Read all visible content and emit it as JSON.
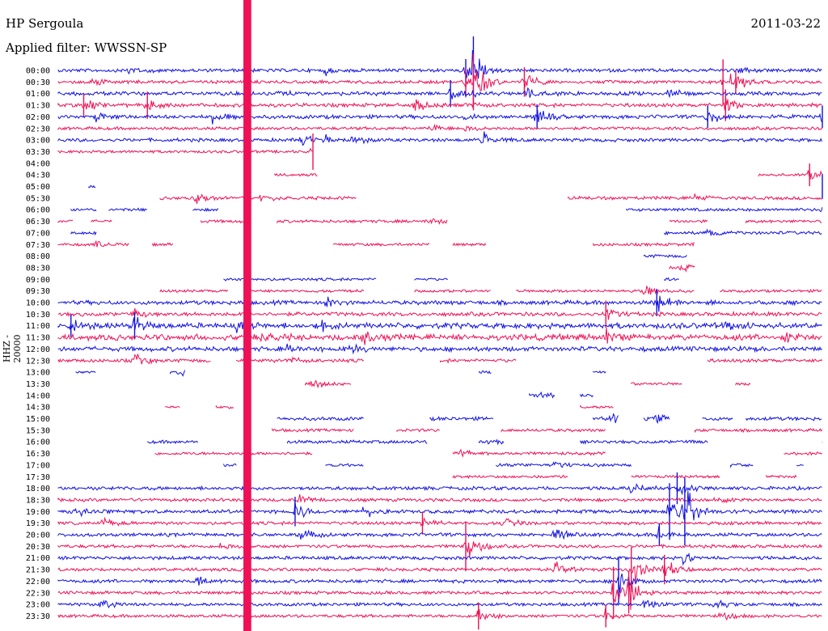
{
  "header": {
    "station": "HP Sergoula",
    "filter": "Applied filter: WWSSN-SP",
    "date": "2011-03-22"
  },
  "chart_data": {
    "type": "line",
    "title": "HP Sergoula",
    "subtitle": "Applied filter: WWSSN-SP",
    "date": "2011-03-22",
    "ylabel": "HHZ - 20000",
    "xlabel": "",
    "ylabels": [
      "00:00",
      "00:30",
      "01:00",
      "01:30",
      "02:00",
      "02:30",
      "03:00",
      "03:30",
      "04:00",
      "04:30",
      "05:00",
      "05:30",
      "06:00",
      "06:30",
      "07:00",
      "07:30",
      "08:00",
      "08:30",
      "09:00",
      "09:30",
      "10:00",
      "10:30",
      "11:00",
      "11:30",
      "12:00",
      "12:30",
      "13:00",
      "13:30",
      "14:00",
      "14:30",
      "15:00",
      "15:30",
      "16:00",
      "16:30",
      "17:00",
      "17:30",
      "18:00",
      "18:30",
      "19:00",
      "19:30",
      "20:00",
      "20:30",
      "21:00",
      "21:30",
      "22:00",
      "22:30",
      "23:00",
      "23:30"
    ],
    "series_colors": [
      "#1010e0",
      "#ee1155"
    ],
    "grid": false,
    "xlim": [
      0,
      30
    ],
    "x_units": "minutes",
    "traces": [
      {
        "label": "00:00",
        "segments": [
          [
            0,
            30
          ]
        ],
        "noise": 0.12,
        "events": [
          [
            2.8,
            0.6
          ],
          [
            10.5,
            0.5
          ],
          [
            16,
            1.0
          ],
          [
            16.3,
            3.0
          ],
          [
            26.5,
            0.4
          ]
        ]
      },
      {
        "label": "00:30",
        "segments": [
          [
            0,
            30
          ]
        ],
        "noise": 0.1,
        "events": [
          [
            1.3,
            0.6
          ],
          [
            16.0,
            1.2
          ],
          [
            16.3,
            2.5
          ],
          [
            18.3,
            1.3
          ],
          [
            26.1,
            2.0
          ],
          [
            26.6,
            1.0
          ]
        ]
      },
      {
        "label": "01:00",
        "segments": [
          [
            0,
            30
          ]
        ],
        "noise": 0.15,
        "events": [
          [
            8.5,
            0.4
          ],
          [
            15.4,
            1.2
          ],
          [
            16,
            0.6
          ],
          [
            18.4,
            0.8
          ],
          [
            24,
            0.6
          ]
        ]
      },
      {
        "label": "01:30",
        "segments": [
          [
            0,
            30
          ]
        ],
        "noise": 0.14,
        "events": [
          [
            1,
            1.0
          ],
          [
            3.5,
            1.2
          ],
          [
            14,
            0.8
          ],
          [
            16,
            0.5
          ],
          [
            26.2,
            1.4
          ]
        ]
      },
      {
        "label": "02:00",
        "segments": [
          [
            0,
            30
          ]
        ],
        "noise": 0.15,
        "events": [
          [
            1.5,
            0.7
          ],
          [
            6,
            0.8
          ],
          [
            16,
            0.4
          ],
          [
            18.8,
            1.1
          ],
          [
            25.5,
            1.0
          ],
          [
            30,
            1.0
          ]
        ]
      },
      {
        "label": "02:30",
        "segments": [
          [
            0,
            30
          ]
        ],
        "noise": 0.08,
        "events": [
          [
            14.6,
            0.5
          ],
          [
            16,
            0.4
          ]
        ]
      },
      {
        "label": "03:00",
        "segments": [
          [
            0,
            30
          ]
        ],
        "noise": 0.12,
        "events": [
          [
            9.5,
            0.9
          ],
          [
            10.5,
            0.7
          ],
          [
            11.6,
            0.6
          ],
          [
            16.7,
            0.9
          ]
        ]
      },
      {
        "label": "03:30",
        "segments": [
          [
            0,
            10
          ]
        ],
        "noise": 0.06,
        "events": [
          [
            10,
            1.6
          ]
        ]
      },
      {
        "label": "04:00",
        "segments": [],
        "noise": 0,
        "events": []
      },
      {
        "label": "04:30",
        "segments": [
          [
            27.5,
            30
          ],
          [
            8.5,
            10.2
          ]
        ],
        "noise": 0.05,
        "events": [
          [
            29.5,
            1.0
          ]
        ]
      },
      {
        "label": "05:00",
        "segments": [
          [
            1.2,
            1.5
          ]
        ],
        "noise": 0.05,
        "events": [
          [
            30,
            1.1
          ]
        ]
      },
      {
        "label": "05:30",
        "segments": [
          [
            4,
            11.7
          ],
          [
            20,
            30
          ]
        ],
        "noise": 0.1,
        "events": [
          [
            5.4,
            0.8
          ],
          [
            8,
            0.6
          ],
          [
            25,
            0.5
          ]
        ]
      },
      {
        "label": "06:00",
        "segments": [
          [
            0.5,
            1.5
          ],
          [
            2,
            3.5
          ],
          [
            5.3,
            6.3
          ],
          [
            22.3,
            30
          ]
        ],
        "noise": 0.08,
        "events": [
          [
            30,
            0.7
          ]
        ]
      },
      {
        "label": "06:30",
        "segments": [
          [
            0,
            0.6
          ],
          [
            1.3,
            2.1
          ],
          [
            5.6,
            7.5
          ],
          [
            8.6,
            15.3
          ],
          [
            24,
            25.5
          ],
          [
            27,
            30
          ]
        ],
        "noise": 0.08,
        "events": [
          [
            14.5,
            0.5
          ]
        ]
      },
      {
        "label": "07:00",
        "segments": [
          [
            0.5,
            1.5
          ],
          [
            23.8,
            30
          ]
        ],
        "noise": 0.1,
        "events": [
          [
            25.5,
            0.7
          ]
        ]
      },
      {
        "label": "07:30",
        "segments": [
          [
            0,
            2.8
          ],
          [
            3.7,
            4.5
          ],
          [
            10.8,
            14.6
          ],
          [
            15.5,
            16.8
          ],
          [
            21,
            25
          ]
        ],
        "noise": 0.07,
        "events": [
          [
            1.5,
            0.4
          ],
          [
            25,
            0.4
          ]
        ]
      },
      {
        "label": "08:00",
        "segments": [
          [
            23,
            24.7
          ]
        ],
        "noise": 0.08,
        "events": [
          [
            24.8,
            0.5
          ]
        ]
      },
      {
        "label": "08:30",
        "segments": [
          [
            24,
            25
          ]
        ],
        "noise": 0.1,
        "events": [
          [
            24.5,
            0.6
          ]
        ]
      },
      {
        "label": "09:00",
        "segments": [
          [
            6.5,
            12.5
          ],
          [
            14,
            15.3
          ],
          [
            23.8,
            24.4
          ]
        ],
        "noise": 0.06,
        "events": []
      },
      {
        "label": "09:30",
        "segments": [
          [
            4,
            6.7
          ],
          [
            7.5,
            12
          ],
          [
            14,
            17
          ],
          [
            18,
            25
          ],
          [
            26,
            30
          ]
        ],
        "noise": 0.06,
        "events": [
          [
            23,
            0.8
          ]
        ]
      },
      {
        "label": "10:00",
        "segments": [
          [
            0,
            30
          ]
        ],
        "noise": 0.18,
        "events": [
          [
            10.5,
            0.6
          ],
          [
            23.5,
            1.2
          ]
        ]
      },
      {
        "label": "10:30",
        "segments": [
          [
            0,
            30
          ]
        ],
        "noise": 0.16,
        "events": [
          [
            3,
            0.8
          ],
          [
            21.5,
            1.2
          ]
        ]
      },
      {
        "label": "11:00",
        "segments": [
          [
            0,
            30
          ]
        ],
        "noise": 0.3,
        "events": [
          [
            0.5,
            1.0
          ],
          [
            3,
            1.2
          ],
          [
            7,
            0.8
          ],
          [
            10.2,
            0.7
          ],
          [
            26.2,
            0.5
          ]
        ]
      },
      {
        "label": "11:30",
        "segments": [
          [
            0,
            30
          ]
        ],
        "noise": 0.32,
        "events": [
          [
            8,
            0.8
          ],
          [
            12,
            0.9
          ],
          [
            21.5,
            0.9
          ],
          [
            28.5,
            0.8
          ]
        ]
      },
      {
        "label": "12:00",
        "segments": [
          [
            0,
            30
          ]
        ],
        "noise": 0.22,
        "events": [
          [
            9,
            0.6
          ],
          [
            11.5,
            0.7
          ],
          [
            26.5,
            0.5
          ]
        ]
      },
      {
        "label": "12:30",
        "segments": [
          [
            0,
            6
          ],
          [
            7,
            12
          ],
          [
            15,
            18
          ],
          [
            25.5,
            30
          ]
        ],
        "noise": 0.12,
        "events": [
          [
            3,
            0.9
          ],
          [
            9,
            0.6
          ]
        ]
      },
      {
        "label": "13:00",
        "segments": [
          [
            0.7,
            1.5
          ],
          [
            4.4,
            5
          ],
          [
            16.5,
            17
          ],
          [
            21,
            21.5
          ]
        ],
        "noise": 0.08,
        "events": [
          [
            4.7,
            0.6
          ]
        ]
      },
      {
        "label": "13:30",
        "segments": [
          [
            9.7,
            11.5
          ],
          [
            22.5,
            24.5
          ],
          [
            26.6,
            27.2
          ]
        ],
        "noise": 0.06,
        "events": [
          [
            10,
            0.7
          ]
        ]
      },
      {
        "label": "14:00",
        "segments": [
          [
            18.5,
            19.5
          ],
          [
            20.5,
            21
          ]
        ],
        "noise": 0.12,
        "events": [
          [
            19,
            0.5
          ]
        ]
      },
      {
        "label": "14:30",
        "segments": [
          [
            4.2,
            4.8
          ],
          [
            6.2,
            6.9
          ],
          [
            20.5,
            21.8
          ]
        ],
        "noise": 0.08,
        "events": []
      },
      {
        "label": "15:00",
        "segments": [
          [
            8.6,
            12
          ],
          [
            14.6,
            17.1
          ],
          [
            21,
            22
          ],
          [
            23,
            24
          ],
          [
            25.3,
            26.5
          ],
          [
            27,
            30
          ]
        ],
        "noise": 0.14,
        "events": [
          [
            21.7,
            0.6
          ],
          [
            23.5,
            0.5
          ]
        ]
      },
      {
        "label": "15:30",
        "segments": [
          [
            8.4,
            11.6
          ],
          [
            13.3,
            15
          ],
          [
            17.4,
            21.5
          ],
          [
            25,
            30
          ]
        ],
        "noise": 0.08,
        "events": []
      },
      {
        "label": "16:00",
        "segments": [
          [
            3.5,
            5.5
          ],
          [
            9,
            14.5
          ],
          [
            16.5,
            17.5
          ],
          [
            20.5,
            25.5
          ],
          [
            30,
            30.4
          ]
        ],
        "noise": 0.1,
        "events": [
          [
            16.9,
            0.6
          ],
          [
            29.9,
            0.5
          ]
        ]
      },
      {
        "label": "16:30",
        "segments": [
          [
            3.8,
            10
          ],
          [
            15.5,
            21.5
          ],
          [
            28.5,
            30
          ]
        ],
        "noise": 0.08,
        "events": [
          [
            15.8,
            0.6
          ]
        ]
      },
      {
        "label": "17:00",
        "segments": [
          [
            6.5,
            7
          ],
          [
            10.5,
            12
          ],
          [
            17.2,
            22.5
          ],
          [
            26.4,
            27.3
          ],
          [
            29,
            29.3
          ]
        ],
        "noise": 0.1,
        "events": [
          [
            19.5,
            0.5
          ]
        ]
      },
      {
        "label": "17:30",
        "segments": [
          [
            15.5,
            20
          ],
          [
            22.5,
            26
          ],
          [
            27.8,
            29
          ]
        ],
        "noise": 0.06,
        "events": []
      },
      {
        "label": "18:00",
        "segments": [
          [
            0,
            30
          ]
        ],
        "noise": 0.12,
        "events": [
          [
            22.5,
            0.8
          ],
          [
            24.3,
            1.4
          ]
        ]
      },
      {
        "label": "18:30",
        "segments": [
          [
            0,
            30
          ]
        ],
        "noise": 0.1,
        "events": [
          [
            9.5,
            0.7
          ],
          [
            25.8,
            0.6
          ]
        ]
      },
      {
        "label": "19:00",
        "segments": [
          [
            0,
            30
          ]
        ],
        "noise": 0.14,
        "events": [
          [
            0.7,
            0.9
          ],
          [
            9.3,
            1.3
          ],
          [
            12,
            0.7
          ],
          [
            24,
            2.5
          ],
          [
            24.6,
            3.0
          ]
        ]
      },
      {
        "label": "19:30",
        "segments": [
          [
            0,
            30
          ]
        ],
        "noise": 0.1,
        "events": [
          [
            1.7,
            0.6
          ],
          [
            14.3,
            1.0
          ],
          [
            17.5,
            0.8
          ]
        ]
      },
      {
        "label": "20:00",
        "segments": [
          [
            0,
            30
          ]
        ],
        "noise": 0.12,
        "events": [
          [
            9.5,
            0.9
          ],
          [
            19.5,
            0.7
          ],
          [
            23.6,
            1.0
          ]
        ]
      },
      {
        "label": "20:30",
        "segments": [
          [
            0,
            30
          ]
        ],
        "noise": 0.1,
        "events": [
          [
            6.4,
            0.5
          ],
          [
            16,
            2.2
          ]
        ]
      },
      {
        "label": "21:00",
        "segments": [
          [
            0,
            30
          ]
        ],
        "noise": 0.12,
        "events": [
          [
            24.5,
            0.9
          ]
        ]
      },
      {
        "label": "21:30",
        "segments": [
          [
            0,
            30
          ]
        ],
        "noise": 0.1,
        "events": [
          [
            19.5,
            0.9
          ],
          [
            22.5,
            2.0
          ],
          [
            23.8,
            1.3
          ]
        ]
      },
      {
        "label": "22:00",
        "segments": [
          [
            0,
            30
          ]
        ],
        "noise": 0.12,
        "events": [
          [
            5.4,
            0.8
          ],
          [
            22,
            2.0
          ]
        ]
      },
      {
        "label": "22:30",
        "segments": [
          [
            0,
            30
          ]
        ],
        "noise": 0.1,
        "events": [
          [
            21.8,
            2.3
          ],
          [
            22.4,
            1.8
          ]
        ]
      },
      {
        "label": "23:00",
        "segments": [
          [
            0,
            30
          ]
        ],
        "noise": 0.1,
        "events": [
          [
            1.7,
            0.6
          ],
          [
            23,
            0.9
          ],
          [
            25.8,
            0.6
          ]
        ]
      },
      {
        "label": "23:30",
        "segments": [
          [
            0,
            30
          ]
        ],
        "noise": 0.08,
        "events": [
          [
            16.5,
            1.2
          ],
          [
            21.5,
            1.0
          ],
          [
            26,
            0.7
          ]
        ]
      }
    ],
    "vertical_marks": [
      {
        "x": 7.5,
        "color": "#ee1155",
        "row_from": 0,
        "row_to": 47
      },
      {
        "x": 7.35,
        "color": "#ee1155",
        "row_from": 0,
        "row_to": 47
      }
    ]
  }
}
